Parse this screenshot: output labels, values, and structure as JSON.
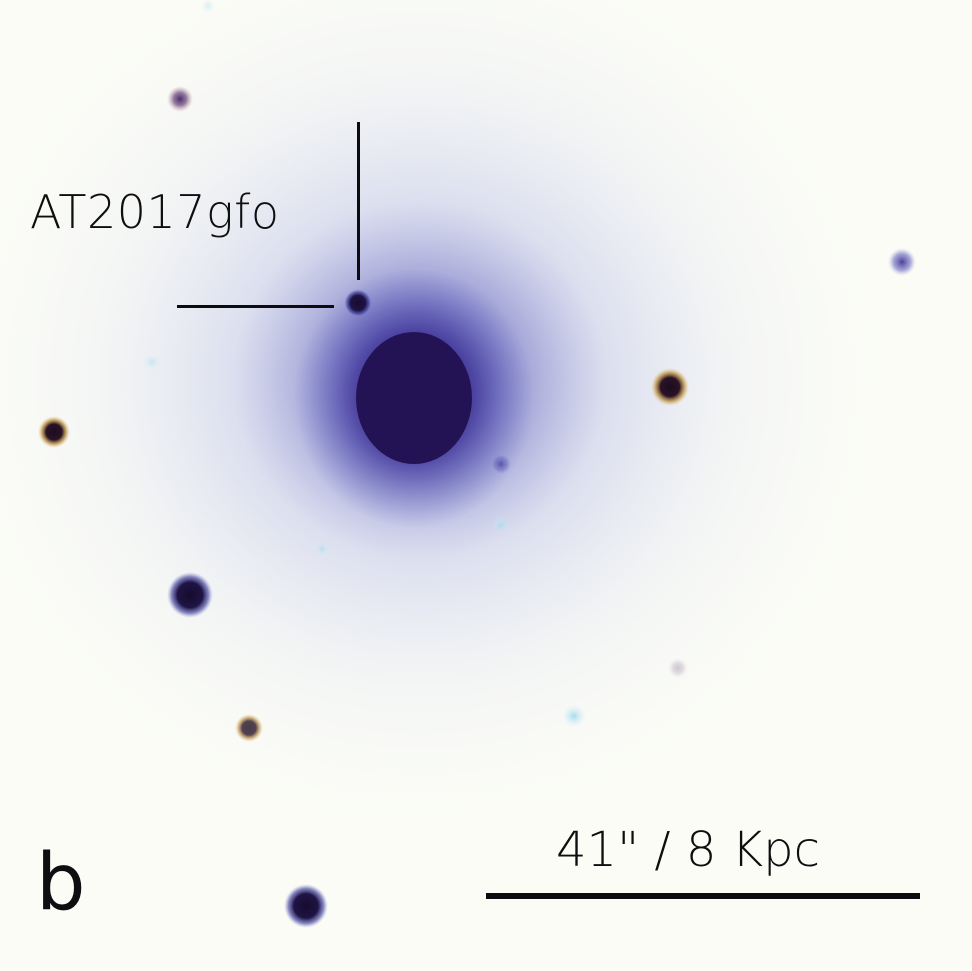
{
  "image": {
    "target_label": "AT2017gfo",
    "scale_label": "41\" / 8 Kpc",
    "panel_letter": "b",
    "colors": {
      "background": "#fbfcf6",
      "galaxy_core": "#241354",
      "halo": "#4a4db2",
      "annotation": "#0c0c10"
    }
  }
}
